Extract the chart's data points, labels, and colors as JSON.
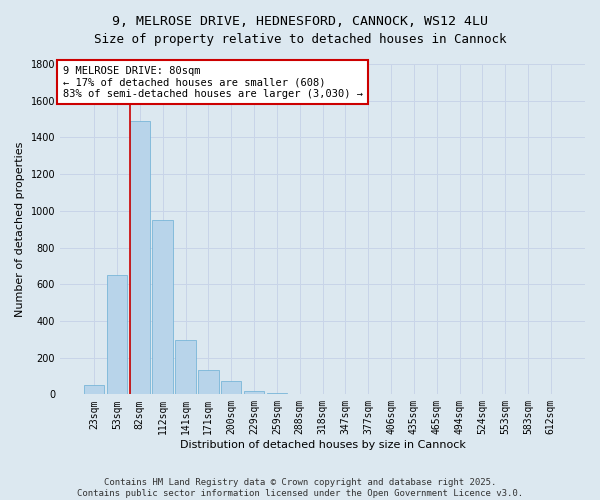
{
  "title_line1": "9, MELROSE DRIVE, HEDNESFORD, CANNOCK, WS12 4LU",
  "title_line2": "Size of property relative to detached houses in Cannock",
  "xlabel": "Distribution of detached houses by size in Cannock",
  "ylabel": "Number of detached properties",
  "categories": [
    "23sqm",
    "53sqm",
    "82sqm",
    "112sqm",
    "141sqm",
    "171sqm",
    "200sqm",
    "229sqm",
    "259sqm",
    "288sqm",
    "318sqm",
    "347sqm",
    "377sqm",
    "406sqm",
    "435sqm",
    "465sqm",
    "494sqm",
    "524sqm",
    "553sqm",
    "583sqm",
    "612sqm"
  ],
  "values": [
    50,
    650,
    1490,
    950,
    295,
    130,
    70,
    20,
    5,
    2,
    0,
    0,
    0,
    0,
    0,
    0,
    0,
    0,
    0,
    0,
    0
  ],
  "bar_color": "#b8d4ea",
  "bar_edge_color": "#6aafd4",
  "property_line_index": 2,
  "annotation_text": "9 MELROSE DRIVE: 80sqm\n← 17% of detached houses are smaller (608)\n83% of semi-detached houses are larger (3,030) →",
  "annotation_box_color": "#ffffff",
  "annotation_box_edge_color": "#cc0000",
  "annotation_text_color": "#000000",
  "vline_color": "#cc0000",
  "ylim": [
    0,
    1800
  ],
  "yticks": [
    0,
    200,
    400,
    600,
    800,
    1000,
    1200,
    1400,
    1600,
    1800
  ],
  "grid_color": "#c8d4e8",
  "background_color": "#dce8f0",
  "footer_line1": "Contains HM Land Registry data © Crown copyright and database right 2025.",
  "footer_line2": "Contains public sector information licensed under the Open Government Licence v3.0.",
  "footer_fontsize": 6.5,
  "title_fontsize": 9.5,
  "tick_fontsize": 7,
  "axis_label_fontsize": 8
}
